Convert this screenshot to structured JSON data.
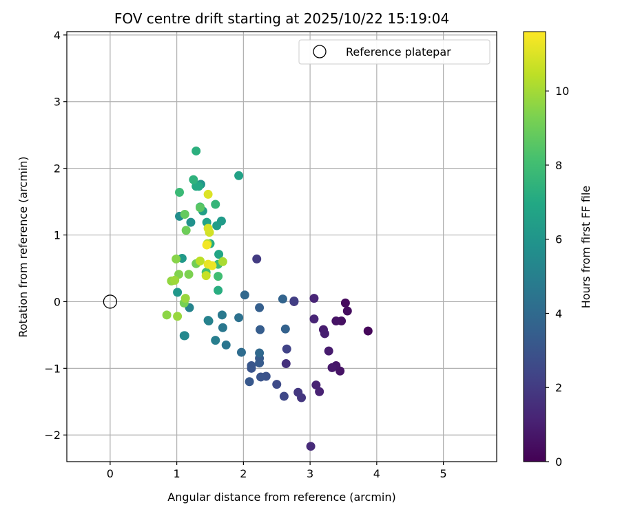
{
  "chart_data": {
    "type": "scatter",
    "title": "FOV centre drift starting at 2025/10/22 15:19:04",
    "xlabel": "Angular distance from reference (arcmin)",
    "ylabel": "Rotation from reference (arcmin)",
    "xlim": [
      -0.65,
      5.8
    ],
    "ylim": [
      -2.4,
      4.05
    ],
    "xticks": [
      0,
      1,
      2,
      3,
      4,
      5
    ],
    "yticks": [
      -2,
      -1,
      0,
      1,
      2,
      3,
      4
    ],
    "grid": true,
    "legend": {
      "placement": "upper-right",
      "entries": [
        "Reference platepar"
      ]
    },
    "reference_point": {
      "name": "Reference platepar",
      "x": 0,
      "y": 0
    },
    "colorbar": {
      "label": "Hours from first FF file",
      "range": [
        0,
        11.6
      ],
      "ticks": [
        0,
        2,
        4,
        6,
        8,
        10
      ],
      "colormap": "viridis"
    },
    "series": [
      {
        "points": [
          {
            "x": 3.87,
            "y": -0.44,
            "t": 0.2
          },
          {
            "x": 3.53,
            "y": -0.02,
            "t": 0.3
          },
          {
            "x": 3.56,
            "y": -0.14,
            "t": 0.4
          },
          {
            "x": 3.47,
            "y": -0.29,
            "t": 0.5
          },
          {
            "x": 3.39,
            "y": -0.29,
            "t": 0.6
          },
          {
            "x": 3.45,
            "y": -1.04,
            "t": 0.6
          },
          {
            "x": 3.39,
            "y": -0.96,
            "t": 0.7
          },
          {
            "x": 3.33,
            "y": -0.99,
            "t": 0.8
          },
          {
            "x": 3.28,
            "y": -0.74,
            "t": 0.9
          },
          {
            "x": 3.2,
            "y": -0.42,
            "t": 0.9
          },
          {
            "x": 3.22,
            "y": -0.48,
            "t": 1.0
          },
          {
            "x": 3.14,
            "y": -1.35,
            "t": 1.1
          },
          {
            "x": 3.09,
            "y": -1.25,
            "t": 1.1
          },
          {
            "x": 3.06,
            "y": 0.05,
            "t": 1.2
          },
          {
            "x": 3.06,
            "y": -0.26,
            "t": 1.2
          },
          {
            "x": 3.01,
            "y": -2.17,
            "t": 1.4
          },
          {
            "x": 2.64,
            "y": -0.93,
            "t": 1.6
          },
          {
            "x": 2.76,
            "y": 0.0,
            "t": 1.7
          },
          {
            "x": 2.87,
            "y": -1.44,
            "t": 1.8
          },
          {
            "x": 2.82,
            "y": -1.36,
            "t": 1.9
          },
          {
            "x": 2.2,
            "y": 0.64,
            "t": 2.0
          },
          {
            "x": 2.76,
            "y": 0.01,
            "t": 2.1
          },
          {
            "x": 2.65,
            "y": -0.71,
            "t": 2.3
          },
          {
            "x": 2.61,
            "y": -1.42,
            "t": 2.5
          },
          {
            "x": 2.5,
            "y": -1.24,
            "t": 2.6
          },
          {
            "x": 2.34,
            "y": -1.12,
            "t": 2.9
          },
          {
            "x": 2.26,
            "y": -1.13,
            "t": 3.0
          },
          {
            "x": 2.12,
            "y": -1.0,
            "t": 3.0
          },
          {
            "x": 2.12,
            "y": -0.96,
            "t": 3.1
          },
          {
            "x": 2.09,
            "y": -1.2,
            "t": 3.2
          },
          {
            "x": 2.24,
            "y": -0.92,
            "t": 3.3
          },
          {
            "x": 2.24,
            "y": -0.85,
            "t": 3.3
          },
          {
            "x": 2.25,
            "y": -0.42,
            "t": 3.4
          },
          {
            "x": 2.24,
            "y": -0.09,
            "t": 3.5
          },
          {
            "x": 2.63,
            "y": -0.41,
            "t": 3.6
          },
          {
            "x": 2.59,
            "y": 0.04,
            "t": 3.7
          },
          {
            "x": 2.24,
            "y": -0.77,
            "t": 3.9
          },
          {
            "x": 2.02,
            "y": 0.1,
            "t": 3.9
          },
          {
            "x": 1.97,
            "y": -0.76,
            "t": 4.1
          },
          {
            "x": 1.93,
            "y": -0.24,
            "t": 4.3
          },
          {
            "x": 1.74,
            "y": -0.65,
            "t": 4.5
          },
          {
            "x": 1.69,
            "y": -0.39,
            "t": 4.6
          },
          {
            "x": 1.68,
            "y": -0.2,
            "t": 4.7
          },
          {
            "x": 1.58,
            "y": -0.58,
            "t": 4.9
          },
          {
            "x": 1.48,
            "y": -0.29,
            "t": 5.0
          },
          {
            "x": 1.47,
            "y": -0.28,
            "t": 5.1
          },
          {
            "x": 1.19,
            "y": -0.09,
            "t": 5.2
          },
          {
            "x": 1.12,
            "y": -0.51,
            "t": 5.3
          },
          {
            "x": 1.11,
            "y": -0.51,
            "t": 5.4
          },
          {
            "x": 1.04,
            "y": 1.28,
            "t": 5.6
          },
          {
            "x": 1.21,
            "y": 1.19,
            "t": 5.8
          },
          {
            "x": 1.36,
            "y": 1.76,
            "t": 6.0
          },
          {
            "x": 1.01,
            "y": 0.14,
            "t": 6.1
          },
          {
            "x": 1.08,
            "y": 0.65,
            "t": 6.2
          },
          {
            "x": 1.67,
            "y": 1.21,
            "t": 6.3
          },
          {
            "x": 1.6,
            "y": 1.14,
            "t": 6.4
          },
          {
            "x": 1.39,
            "y": 1.36,
            "t": 6.5
          },
          {
            "x": 1.93,
            "y": 1.89,
            "t": 6.6
          },
          {
            "x": 1.45,
            "y": 1.19,
            "t": 6.7
          },
          {
            "x": 1.63,
            "y": 0.71,
            "t": 6.8
          },
          {
            "x": 1.33,
            "y": 1.73,
            "t": 6.9
          },
          {
            "x": 1.29,
            "y": 1.73,
            "t": 7.0
          },
          {
            "x": 1.5,
            "y": 0.87,
            "t": 7.1
          },
          {
            "x": 1.62,
            "y": 0.17,
            "t": 7.2
          },
          {
            "x": 1.29,
            "y": 2.26,
            "t": 7.3
          },
          {
            "x": 1.25,
            "y": 1.83,
            "t": 7.4
          },
          {
            "x": 1.58,
            "y": 1.46,
            "t": 7.6
          },
          {
            "x": 1.35,
            "y": 1.42,
            "t": 7.7
          },
          {
            "x": 1.04,
            "y": 1.64,
            "t": 7.8
          },
          {
            "x": 1.62,
            "y": 0.56,
            "t": 7.9
          },
          {
            "x": 1.62,
            "y": 0.38,
            "t": 8.0
          },
          {
            "x": 1.44,
            "y": 0.44,
            "t": 8.1
          },
          {
            "x": 1.35,
            "y": 1.41,
            "t": 8.6
          },
          {
            "x": 1.12,
            "y": 1.31,
            "t": 8.8
          },
          {
            "x": 1.14,
            "y": 1.07,
            "t": 9.0
          },
          {
            "x": 1.29,
            "y": 0.57,
            "t": 9.1
          },
          {
            "x": 1.11,
            "y": -0.02,
            "t": 9.2
          },
          {
            "x": 1.18,
            "y": 0.41,
            "t": 9.3
          },
          {
            "x": 1.03,
            "y": 0.41,
            "t": 9.4
          },
          {
            "x": 0.99,
            "y": 0.64,
            "t": 9.5
          },
          {
            "x": 0.85,
            "y": -0.2,
            "t": 9.6
          },
          {
            "x": 0.92,
            "y": 0.31,
            "t": 9.7
          },
          {
            "x": 1.01,
            "y": -0.22,
            "t": 9.8
          },
          {
            "x": 1.13,
            "y": 0.05,
            "t": 9.8
          },
          {
            "x": 0.97,
            "y": 0.32,
            "t": 9.9
          },
          {
            "x": 1.69,
            "y": 0.6,
            "t": 10.1
          },
          {
            "x": 1.46,
            "y": 0.87,
            "t": 10.2
          },
          {
            "x": 1.35,
            "y": 0.61,
            "t": 10.4
          },
          {
            "x": 1.44,
            "y": 0.39,
            "t": 10.6
          },
          {
            "x": 1.49,
            "y": 1.04,
            "t": 10.8
          },
          {
            "x": 1.47,
            "y": 1.1,
            "t": 10.9
          },
          {
            "x": 1.47,
            "y": 1.61,
            "t": 11.0
          },
          {
            "x": 1.47,
            "y": 0.56,
            "t": 11.2
          },
          {
            "x": 1.53,
            "y": 0.54,
            "t": 11.3
          },
          {
            "x": 1.45,
            "y": 0.85,
            "t": 11.4
          }
        ]
      }
    ]
  }
}
